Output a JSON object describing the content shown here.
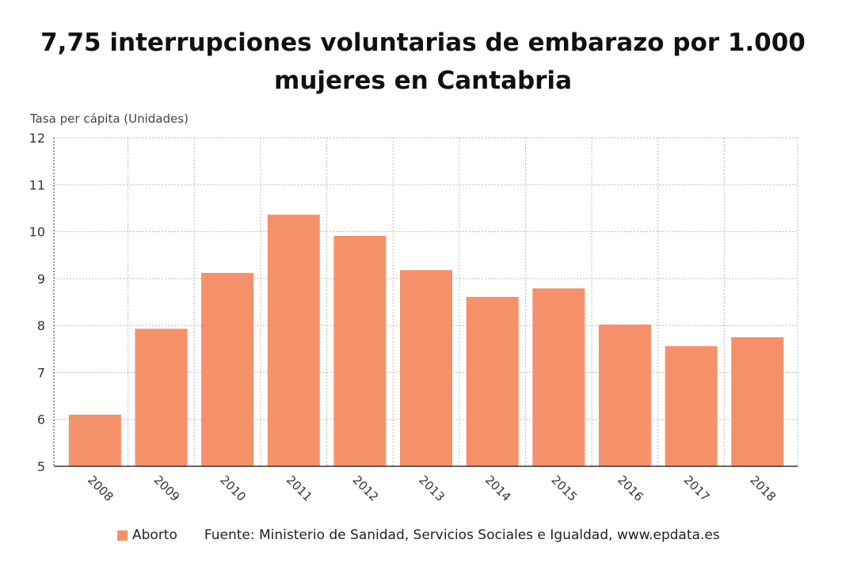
{
  "chart_data": {
    "type": "bar",
    "title": "7,75 interrupciones voluntarias de embarazo por 1.000 mujeres en Cantabria",
    "ylabel": "Tasa per cápita (Unidades)",
    "xlabel": "",
    "categories": [
      "2008",
      "2009",
      "2010",
      "2011",
      "2012",
      "2013",
      "2014",
      "2015",
      "2016",
      "2017",
      "2018"
    ],
    "series": [
      {
        "name": "Aborto",
        "values": [
          6.1,
          7.93,
          9.12,
          10.36,
          9.91,
          9.18,
          8.61,
          8.79,
          8.02,
          7.56,
          7.75
        ],
        "color": "#f4916a"
      }
    ],
    "ylim": [
      5,
      12
    ],
    "yticks": [
      5,
      6,
      7,
      8,
      9,
      10,
      11,
      12
    ],
    "grid": true,
    "legend": "bottom-left"
  },
  "source": "Fuente: Ministerio de Sanidad, Servicios Sociales e Igualdad, www.epdata.es"
}
